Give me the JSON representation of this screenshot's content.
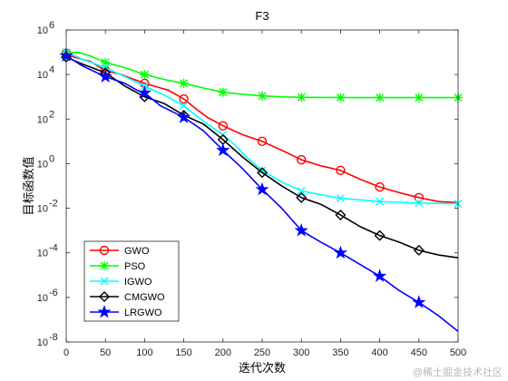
{
  "chart_data": {
    "type": "line",
    "title": "F3",
    "xlabel": "迭代次数",
    "ylabel": "目标函数值",
    "xlim": [
      0,
      500
    ],
    "ylim": [
      1e-08,
      1000000.0
    ],
    "yscale": "log",
    "x_ticks": [
      "0",
      "50",
      "100",
      "150",
      "200",
      "250",
      "300",
      "350",
      "400",
      "450",
      "500"
    ],
    "y_ticks": [
      {
        "base": "10",
        "exp": "-8"
      },
      {
        "base": "10",
        "exp": "-6"
      },
      {
        "base": "10",
        "exp": "-4"
      },
      {
        "base": "10",
        "exp": "-2"
      },
      {
        "base": "10",
        "exp": "0"
      },
      {
        "base": "10",
        "exp": "2"
      },
      {
        "base": "10",
        "exp": "4"
      },
      {
        "base": "10",
        "exp": "6"
      }
    ],
    "legend_position": "bottom-left",
    "grid": false,
    "series": [
      {
        "name": "GWO",
        "color": "#ff0000",
        "marker": "circle",
        "points": [
          [
            0,
            90000
          ],
          [
            10,
            60000
          ],
          [
            30,
            40000
          ],
          [
            50,
            15000
          ],
          [
            70,
            10000
          ],
          [
            100,
            4000
          ],
          [
            130,
            2000
          ],
          [
            150,
            800
          ],
          [
            165,
            300
          ],
          [
            180,
            120
          ],
          [
            200,
            50
          ],
          [
            225,
            20
          ],
          [
            250,
            10
          ],
          [
            275,
            4
          ],
          [
            300,
            1.5
          ],
          [
            325,
            0.8
          ],
          [
            350,
            0.5
          ],
          [
            375,
            0.2
          ],
          [
            400,
            0.09
          ],
          [
            425,
            0.05
          ],
          [
            450,
            0.03
          ],
          [
            475,
            0.02
          ],
          [
            500,
            0.018
          ]
        ],
        "marker_x": [
          0,
          50,
          100,
          150,
          200,
          250,
          300,
          350,
          400,
          450
        ]
      },
      {
        "name": "PSO",
        "color": "#00ff00",
        "marker": "star",
        "points": [
          [
            0,
            90000
          ],
          [
            15,
            100000
          ],
          [
            30,
            70000
          ],
          [
            50,
            35000
          ],
          [
            75,
            20000
          ],
          [
            100,
            10000
          ],
          [
            125,
            6000
          ],
          [
            150,
            4000
          ],
          [
            175,
            2500
          ],
          [
            200,
            1600
          ],
          [
            225,
            1300
          ],
          [
            250,
            1100
          ],
          [
            275,
            1000
          ],
          [
            300,
            950
          ],
          [
            350,
            930
          ],
          [
            400,
            920
          ],
          [
            450,
            920
          ],
          [
            500,
            920
          ]
        ],
        "marker_x": [
          0,
          50,
          100,
          150,
          200,
          250,
          300,
          350,
          400,
          450,
          500
        ]
      },
      {
        "name": "IGWO",
        "color": "#00ffff",
        "marker": "x",
        "points": [
          [
            0,
            100000
          ],
          [
            20,
            50000
          ],
          [
            50,
            20000
          ],
          [
            75,
            8000
          ],
          [
            100,
            3000
          ],
          [
            125,
            1200
          ],
          [
            150,
            400
          ],
          [
            165,
            150
          ],
          [
            180,
            60
          ],
          [
            200,
            20
          ],
          [
            215,
            7
          ],
          [
            230,
            2
          ],
          [
            250,
            0.5
          ],
          [
            275,
            0.15
          ],
          [
            300,
            0.06
          ],
          [
            325,
            0.04
          ],
          [
            350,
            0.028
          ],
          [
            400,
            0.02
          ],
          [
            450,
            0.017
          ],
          [
            500,
            0.016
          ]
        ],
        "marker_x": [
          0,
          50,
          100,
          150,
          200,
          250,
          300,
          350,
          400,
          450,
          500
        ]
      },
      {
        "name": "CMGWO",
        "color": "#000000",
        "marker": "diamond",
        "points": [
          [
            0,
            60000
          ],
          [
            20,
            30000
          ],
          [
            50,
            12000
          ],
          [
            75,
            3000
          ],
          [
            100,
            1000
          ],
          [
            125,
            500
          ],
          [
            150,
            150
          ],
          [
            175,
            60
          ],
          [
            200,
            12
          ],
          [
            225,
            2
          ],
          [
            250,
            0.4
          ],
          [
            275,
            0.1
          ],
          [
            300,
            0.03
          ],
          [
            325,
            0.015
          ],
          [
            350,
            0.005
          ],
          [
            375,
            0.0015
          ],
          [
            400,
            0.0006
          ],
          [
            425,
            0.0003
          ],
          [
            450,
            0.00013
          ],
          [
            475,
            8e-05
          ],
          [
            500,
            6e-05
          ]
        ],
        "marker_x": [
          0,
          50,
          100,
          150,
          200,
          250,
          300,
          350,
          400,
          450
        ]
      },
      {
        "name": "LRGWO",
        "color": "#0000ff",
        "marker": "pentagram",
        "points": [
          [
            0,
            70000
          ],
          [
            20,
            25000
          ],
          [
            50,
            8000
          ],
          [
            75,
            4000
          ],
          [
            90,
            2000
          ],
          [
            100,
            1500
          ],
          [
            120,
            400
          ],
          [
            150,
            120
          ],
          [
            175,
            30
          ],
          [
            200,
            4
          ],
          [
            225,
            0.6
          ],
          [
            250,
            0.07
          ],
          [
            275,
            0.01
          ],
          [
            300,
            0.001
          ],
          [
            325,
            0.0003
          ],
          [
            350,
            0.0001
          ],
          [
            375,
            3e-05
          ],
          [
            400,
            9e-06
          ],
          [
            425,
            2e-06
          ],
          [
            450,
            6e-07
          ],
          [
            475,
            1.5e-07
          ],
          [
            500,
            3e-08
          ]
        ],
        "marker_x": [
          0,
          50,
          100,
          150,
          200,
          250,
          300,
          350,
          400,
          450
        ]
      }
    ]
  },
  "watermark": "@稀土掘金技术社区"
}
